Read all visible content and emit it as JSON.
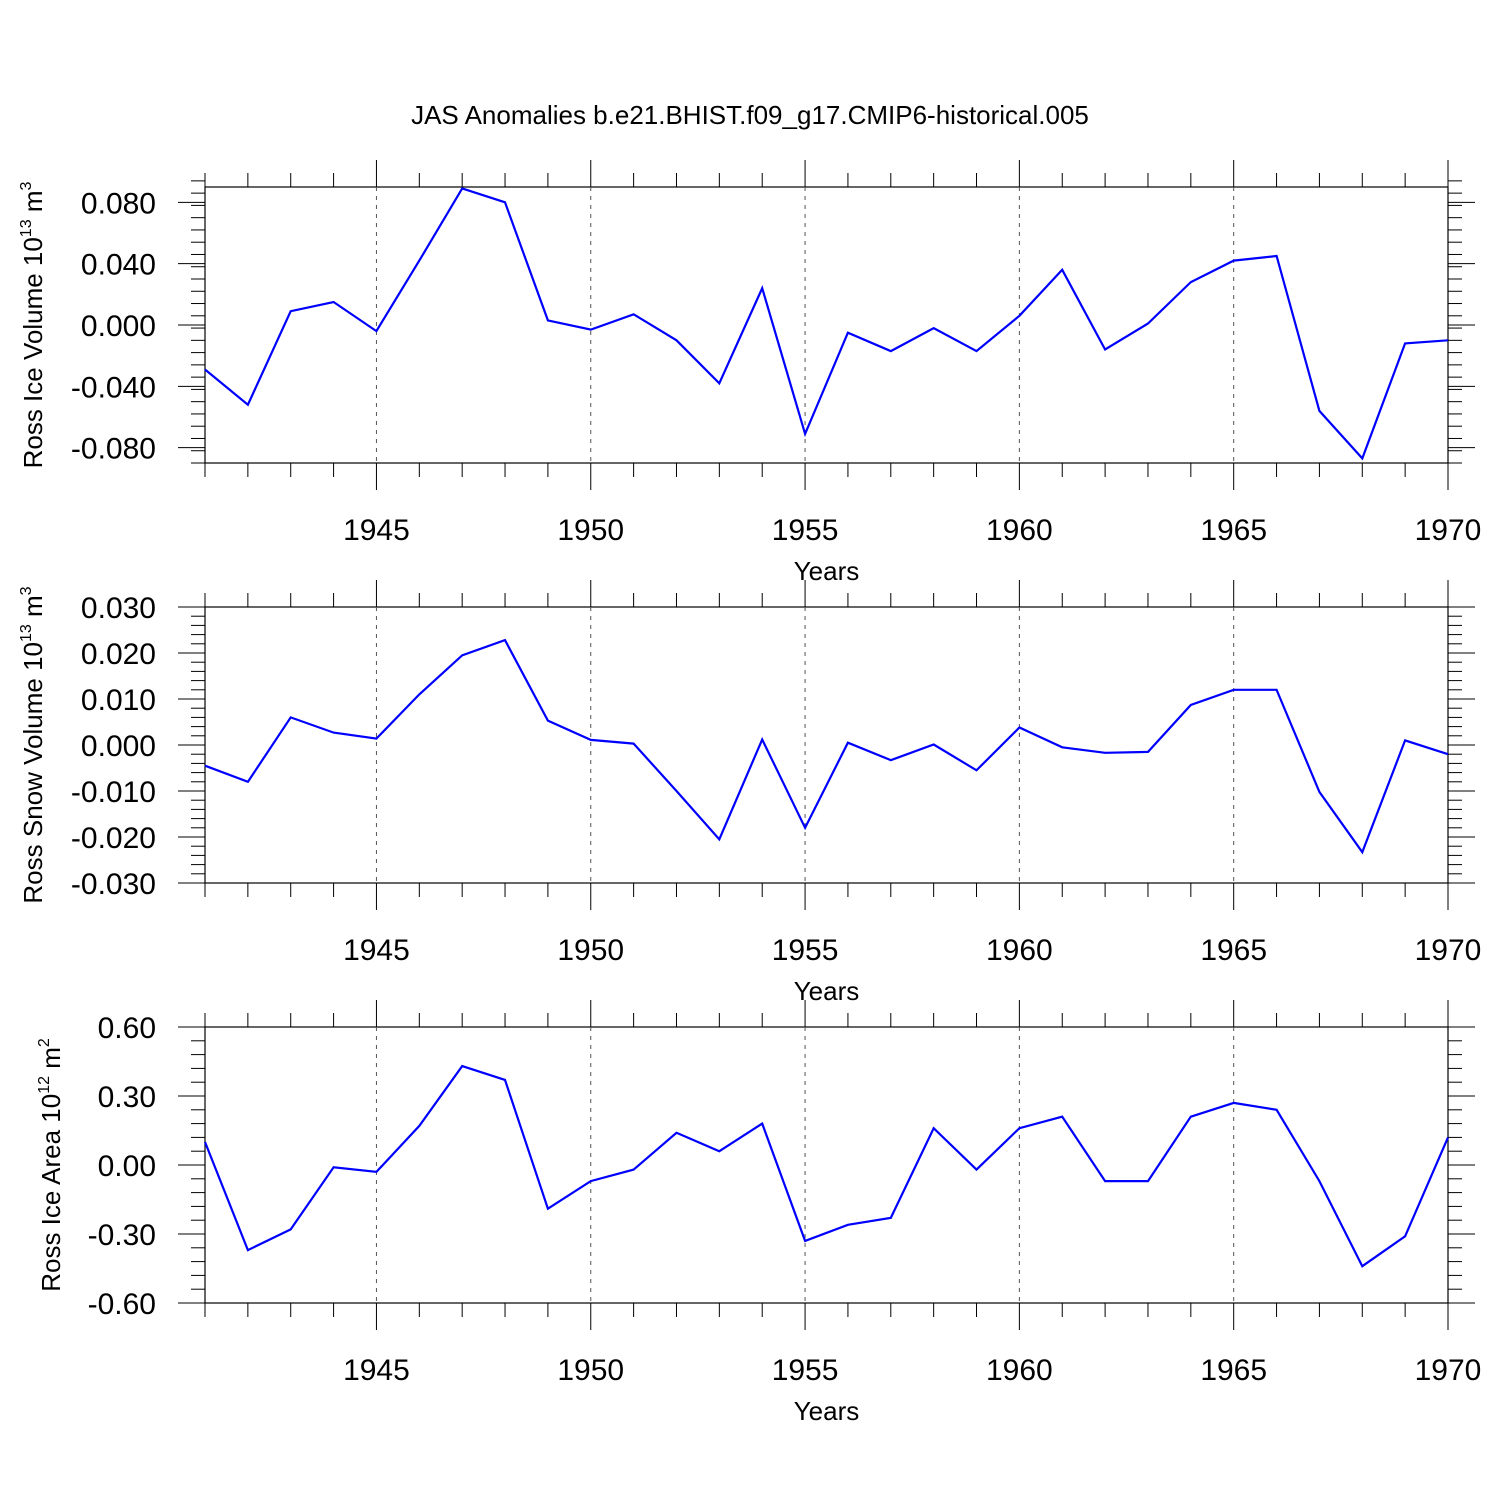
{
  "title": "JAS Anomalies b.e21.BHIST.f09_g17.CMIP6-historical.005",
  "line_color": "#0000ff",
  "chart_data": [
    {
      "type": "line",
      "ylabel_main": "Ross Ice Volume 10",
      "ylabel_exp": "13",
      "ylabel_unit": " m",
      "ylabel_unit_exp": "3",
      "xlabel": "Years",
      "xlim": [
        1941,
        1970
      ],
      "ylim": [
        -0.09,
        0.09
      ],
      "y_major_ticks": [
        -0.08,
        -0.04,
        0.0,
        0.04,
        0.08
      ],
      "y_tick_labels": [
        "-0.080",
        "-0.040",
        "0.000",
        "0.040",
        "0.080"
      ],
      "y_minor_step": 0.008,
      "x_major_ticks": [
        1945,
        1950,
        1955,
        1960,
        1965,
        1970
      ],
      "x_tick_labels": [
        "1945",
        "1950",
        "1955",
        "1960",
        "1965",
        "1970"
      ],
      "x": [
        1941,
        1942,
        1943,
        1944,
        1945,
        1946,
        1947,
        1948,
        1949,
        1950,
        1951,
        1952,
        1953,
        1954,
        1955,
        1956,
        1957,
        1958,
        1959,
        1960,
        1961,
        1962,
        1963,
        1964,
        1965,
        1966,
        1967,
        1968,
        1969,
        1970
      ],
      "values": [
        -0.029,
        -0.052,
        0.009,
        0.015,
        -0.004,
        0.042,
        0.089,
        0.08,
        0.003,
        -0.003,
        0.007,
        -0.01,
        -0.038,
        0.024,
        -0.071,
        -0.005,
        -0.017,
        -0.002,
        -0.017,
        0.006,
        0.036,
        -0.016,
        0.001,
        0.028,
        0.042,
        0.045,
        -0.056,
        -0.087,
        -0.012,
        -0.01
      ]
    },
    {
      "type": "line",
      "ylabel_main": "Ross Snow Volume 10",
      "ylabel_exp": "13",
      "ylabel_unit": " m",
      "ylabel_unit_exp": "3",
      "xlabel": "Years",
      "xlim": [
        1941,
        1970
      ],
      "ylim": [
        -0.03,
        0.03
      ],
      "y_major_ticks": [
        -0.03,
        -0.02,
        -0.01,
        0.0,
        0.01,
        0.02,
        0.03
      ],
      "y_tick_labels": [
        "-0.030",
        "-0.020",
        "-0.010",
        "0.000",
        "0.010",
        "0.020",
        "0.030"
      ],
      "y_minor_step": 0.002,
      "x_major_ticks": [
        1945,
        1950,
        1955,
        1960,
        1965,
        1970
      ],
      "x_tick_labels": [
        "1945",
        "1950",
        "1955",
        "1960",
        "1965",
        "1970"
      ],
      "x": [
        1941,
        1942,
        1943,
        1944,
        1945,
        1946,
        1947,
        1948,
        1949,
        1950,
        1951,
        1952,
        1953,
        1954,
        1955,
        1956,
        1957,
        1958,
        1959,
        1960,
        1961,
        1962,
        1963,
        1964,
        1965,
        1966,
        1967,
        1968,
        1969,
        1970
      ],
      "values": [
        -0.0045,
        -0.008,
        0.006,
        0.0027,
        0.0014,
        0.011,
        0.0195,
        0.0228,
        0.0053,
        0.0011,
        0.0003,
        -0.01,
        -0.0205,
        0.0012,
        -0.018,
        0.0005,
        -0.0033,
        0.0001,
        -0.0055,
        0.0038,
        -0.0005,
        -0.0017,
        -0.0015,
        0.0087,
        0.012,
        0.012,
        -0.0102,
        -0.0233,
        0.001,
        -0.002
      ]
    },
    {
      "type": "line",
      "ylabel_main": "Ross Ice Area 10",
      "ylabel_exp": "12",
      "ylabel_unit": " m",
      "ylabel_unit_exp": "2",
      "xlabel": "Years",
      "xlim": [
        1941,
        1970
      ],
      "ylim": [
        -0.6,
        0.6
      ],
      "y_major_ticks": [
        -0.6,
        -0.3,
        0.0,
        0.3,
        0.6
      ],
      "y_tick_labels": [
        "-0.60",
        "-0.30",
        "0.00",
        "0.30",
        "0.60"
      ],
      "y_minor_step": 0.06,
      "x_major_ticks": [
        1945,
        1950,
        1955,
        1960,
        1965,
        1970
      ],
      "x_tick_labels": [
        "1945",
        "1950",
        "1955",
        "1960",
        "1965",
        "1970"
      ],
      "x": [
        1941,
        1942,
        1943,
        1944,
        1945,
        1946,
        1947,
        1948,
        1949,
        1950,
        1951,
        1952,
        1953,
        1954,
        1955,
        1956,
        1957,
        1958,
        1959,
        1960,
        1961,
        1962,
        1963,
        1964,
        1965,
        1966,
        1967,
        1968,
        1969,
        1970
      ],
      "values": [
        0.1,
        -0.37,
        -0.28,
        -0.01,
        -0.03,
        0.17,
        0.43,
        0.37,
        -0.19,
        -0.07,
        -0.02,
        0.14,
        0.06,
        0.18,
        -0.33,
        -0.26,
        -0.23,
        0.16,
        -0.02,
        0.16,
        0.21,
        -0.07,
        -0.07,
        0.21,
        0.27,
        0.24,
        -0.07,
        -0.44,
        -0.31,
        0.12
      ]
    }
  ]
}
